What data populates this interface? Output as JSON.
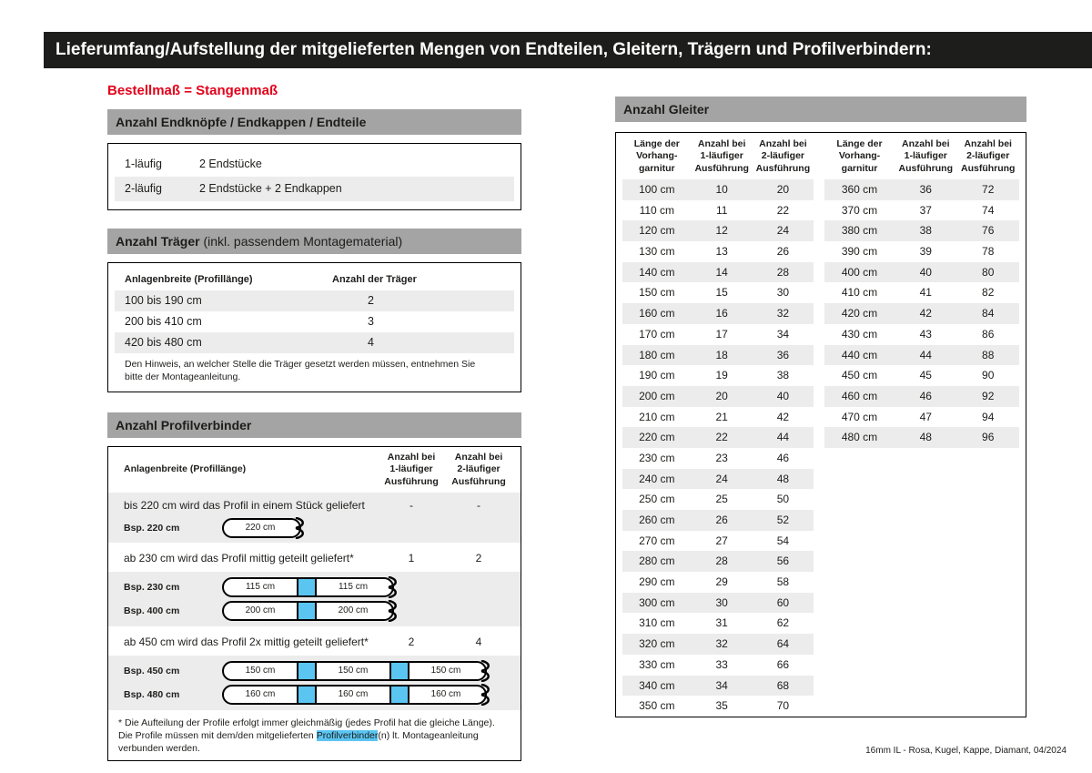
{
  "page": {
    "title": "Lieferumfang/Aufstellung der mitgelieferten Mengen von Endteilen, Gleitern, Trägern und Profilverbindern:",
    "subtitle": "Bestellmaß = Stangenmaß",
    "footer": "16mm IL - Rosa, Kugel, Kappe, Diamant, 04/2024"
  },
  "colors": {
    "accent_red": "#e2001a",
    "section_header_gray": "#a4a4a4",
    "row_stripe_gray": "#ececec",
    "connector_blue": "#5bc5f2",
    "title_bar_black": "#1d1d1b"
  },
  "endteile": {
    "header": "Anzahl Endknöpfe / Endkappen / Endteile",
    "rows": [
      [
        "1-läufig",
        "2 Endstücke"
      ],
      [
        "2-läufig",
        "2 Endstücke + 2 Endkappen"
      ]
    ]
  },
  "traeger": {
    "header_bold": "Anzahl Träger",
    "header_rest": " (inkl. passendem Montagematerial)",
    "col_width": "Anlagenbreite (Profillänge)",
    "col_count": "Anzahl der Träger",
    "rows": [
      [
        "100 bis 190 cm",
        "2"
      ],
      [
        "200 bis 410 cm",
        "3"
      ],
      [
        "420 bis 480 cm",
        "4"
      ]
    ],
    "note": "Den Hinweis, an welcher Stelle die Träger gesetzt werden müssen, entnehmen Sie bitte der Montageanleitung."
  },
  "profilverbinder": {
    "header": "Anzahl Profilverbinder",
    "col_label": "Anlagenbreite (Profillänge)",
    "col_one": "Anzahl bei\n1-läufiger\nAusführung",
    "col_two": "Anzahl bei\n2-läufiger\nAusführung",
    "sections": [
      {
        "text": "bis 220 cm wird das Profil in einem Stück geliefert",
        "count1": "-",
        "count2": "-",
        "examples": [
          {
            "label": "Bsp. 220 cm",
            "segments": [
              "220 cm"
            ]
          }
        ]
      },
      {
        "text": "ab 230 cm wird das Profil mittig geteilt geliefert*",
        "count1": "1",
        "count2": "2",
        "examples": [
          {
            "label": "Bsp. 230 cm",
            "segments": [
              "115 cm",
              "115 cm"
            ]
          },
          {
            "label": "Bsp. 400 cm",
            "segments": [
              "200 cm",
              "200 cm"
            ]
          }
        ]
      },
      {
        "text": "ab 450 cm wird das Profil 2x mittig geteilt geliefert*",
        "count1": "2",
        "count2": "4",
        "examples": [
          {
            "label": "Bsp. 450 cm",
            "segments": [
              "150 cm",
              "150 cm",
              "150 cm"
            ]
          },
          {
            "label": "Bsp. 480 cm",
            "segments": [
              "160 cm",
              "160 cm",
              "160 cm"
            ]
          }
        ]
      }
    ],
    "footnote_pre": "* Die Aufteilung der Profile erfolgt immer gleichmäßig (jedes Profil hat die gleiche Länge). Die Profile müssen mit dem/den mitgelieferten ",
    "footnote_highlight": "Profilverbinder",
    "footnote_post": "(n) lt. Montageanleitung verbunden werden."
  },
  "gleiter": {
    "header": "Anzahl Gleiter",
    "col_length": "Länge der\nVorhang-\ngarnitur",
    "col_one": "Anzahl bei\n1-läufiger\nAusführung",
    "col_two": "Anzahl bei\n2-läufiger\nAusführung",
    "table1": [
      [
        "100 cm",
        "10",
        "20"
      ],
      [
        "110 cm",
        "11",
        "22"
      ],
      [
        "120 cm",
        "12",
        "24"
      ],
      [
        "130 cm",
        "13",
        "26"
      ],
      [
        "140 cm",
        "14",
        "28"
      ],
      [
        "150 cm",
        "15",
        "30"
      ],
      [
        "160 cm",
        "16",
        "32"
      ],
      [
        "170 cm",
        "17",
        "34"
      ],
      [
        "180 cm",
        "18",
        "36"
      ],
      [
        "190 cm",
        "19",
        "38"
      ],
      [
        "200 cm",
        "20",
        "40"
      ],
      [
        "210 cm",
        "21",
        "42"
      ],
      [
        "220 cm",
        "22",
        "44"
      ],
      [
        "230 cm",
        "23",
        "46"
      ],
      [
        "240 cm",
        "24",
        "48"
      ],
      [
        "250 cm",
        "25",
        "50"
      ],
      [
        "260 cm",
        "26",
        "52"
      ],
      [
        "270 cm",
        "27",
        "54"
      ],
      [
        "280 cm",
        "28",
        "56"
      ],
      [
        "290 cm",
        "29",
        "58"
      ],
      [
        "300 cm",
        "30",
        "60"
      ],
      [
        "310 cm",
        "31",
        "62"
      ],
      [
        "320 cm",
        "32",
        "64"
      ],
      [
        "330 cm",
        "33",
        "66"
      ],
      [
        "340 cm",
        "34",
        "68"
      ],
      [
        "350 cm",
        "35",
        "70"
      ]
    ],
    "table2": [
      [
        "360 cm",
        "36",
        "72"
      ],
      [
        "370 cm",
        "37",
        "74"
      ],
      [
        "380 cm",
        "38",
        "76"
      ],
      [
        "390 cm",
        "39",
        "78"
      ],
      [
        "400 cm",
        "40",
        "80"
      ],
      [
        "410 cm",
        "41",
        "82"
      ],
      [
        "420 cm",
        "42",
        "84"
      ],
      [
        "430 cm",
        "43",
        "86"
      ],
      [
        "440 cm",
        "44",
        "88"
      ],
      [
        "450 cm",
        "45",
        "90"
      ],
      [
        "460 cm",
        "46",
        "92"
      ],
      [
        "470 cm",
        "47",
        "94"
      ],
      [
        "480 cm",
        "48",
        "96"
      ]
    ]
  }
}
